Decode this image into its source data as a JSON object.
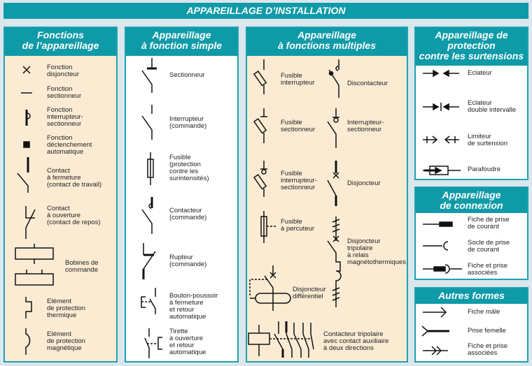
{
  "title": "APPAREILLAGE D’INSTALLATION",
  "panels": {
    "fonctions": {
      "title": "Fonctions\nde l’appareillage",
      "items": [
        "Fonction\ndisjoncteur",
        "Fonction\nsectionneur",
        "Fonction\ninterrupteur-\nsectionneur",
        "Fonction\ndéclenchement\nautomatique",
        "Contact\nà fermeture\n(contact de travail)",
        "Contact\nà ouverture\n(contact de repos)",
        "Bobines de\ncommande",
        "Elément\nde protection\nthermique",
        "Elément\nde protection\nmagnétique"
      ]
    },
    "simple": {
      "title": "Appareillage\nà fonction simple",
      "items": [
        "Sectionneur",
        "Interrupteur\n(commande)",
        "Fusible\n(protection\ncontre les\nsurintensités)",
        "Contacteur\n(commande)",
        "Rupteur\n(commande)",
        "Bouton-poussoir\nà fermeture\net retour\nautomatique",
        "Tirette\nà ouverture\net retour\nautomatique"
      ]
    },
    "multiples": {
      "title": "Appareillage\nà fonctions multiples",
      "items": [
        "Fusible\ninterrupteur",
        "Discontacteur",
        "Fusible\nsectionneur",
        "Interrupteur-\nsectionneur",
        "Fusible\ninterrupteur-\nsectionneur",
        "Disjoncteur",
        "Fusible\nà percuteur",
        "Disjoncteur\ntripolaire\nà relais\nmagnétothermiques",
        "Disjoncteur\ndifférentiel",
        "Contacteur tripolaire\navec contact auxiliaire\nà deux directions"
      ]
    },
    "surtensions": {
      "title": "Appareillage de\nprotection\ncontre les surtensions",
      "items": [
        "Eclateur",
        "Eclateur\ndouble intervalle",
        "Limiteur\nde surtension",
        "Parafoudre"
      ]
    },
    "connexion": {
      "title": "Appareillage\nde connexion",
      "items": [
        "Fiche de prise\nde courant",
        "Socle de prise\nde courant",
        "Fiche et prise\nassociées"
      ]
    },
    "autres": {
      "title": "Autres formes",
      "items": [
        "Fiche mâle",
        "Prise femelle",
        "Fiche et prise\nassociées"
      ]
    }
  },
  "colors": {
    "header": "#0f9aa8",
    "cream": "#fbebd3",
    "background": "#dbe7ec"
  }
}
